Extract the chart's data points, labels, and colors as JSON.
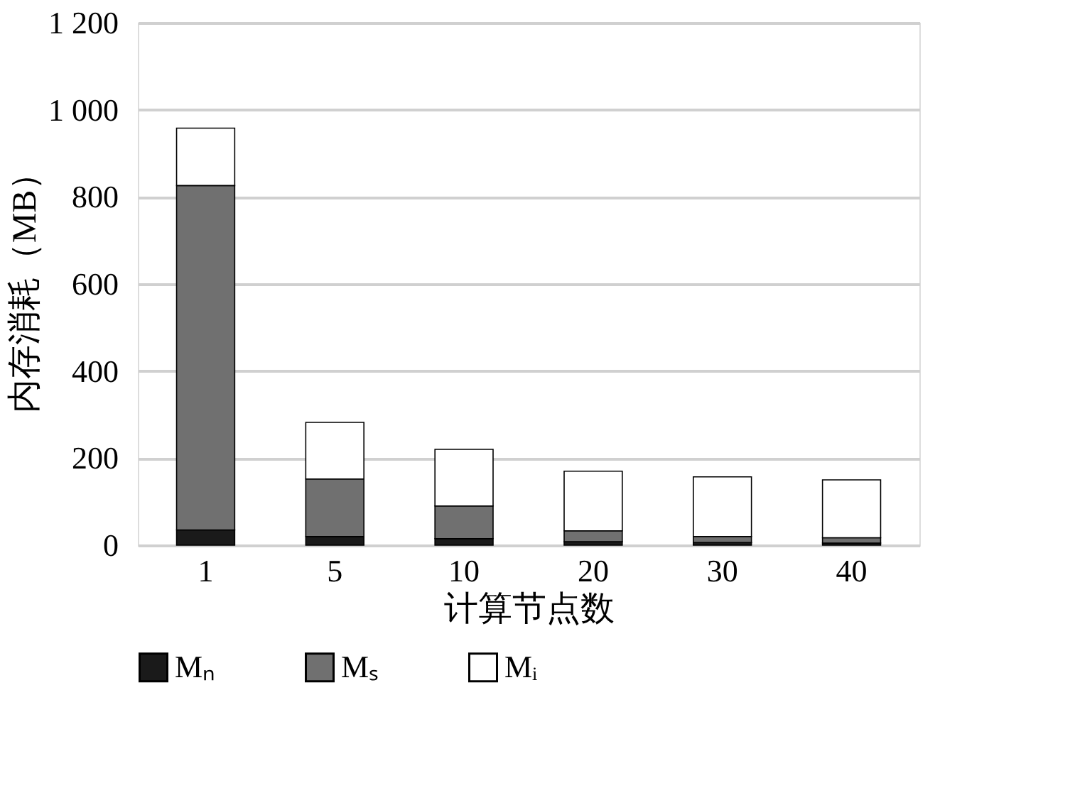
{
  "chart_data": {
    "type": "bar",
    "stacked": true,
    "xlabel": "计算节点数",
    "ylabel": "内存消耗（MB）",
    "categories": [
      "1",
      "5",
      "10",
      "20",
      "30",
      "40"
    ],
    "series": [
      {
        "name": "Mₙ",
        "color": "#1a1a1a",
        "values": [
          35,
          20,
          15,
          8,
          6,
          5
        ]
      },
      {
        "name": "Mₛ",
        "color": "#707070",
        "values": [
          791,
          132,
          75,
          25,
          14,
          12
        ]
      },
      {
        "name": "Mᵢ",
        "color": "#ffffff",
        "values": [
          132,
          130,
          130,
          137,
          137,
          133
        ]
      }
    ],
    "ylim": [
      0,
      1200
    ],
    "yticks": [
      0,
      200,
      400,
      600,
      800,
      {
        "value": 1000,
        "label": "1 000"
      },
      {
        "value": 1200,
        "label": "1 200"
      }
    ],
    "grid": "y",
    "legend": "bottom"
  }
}
